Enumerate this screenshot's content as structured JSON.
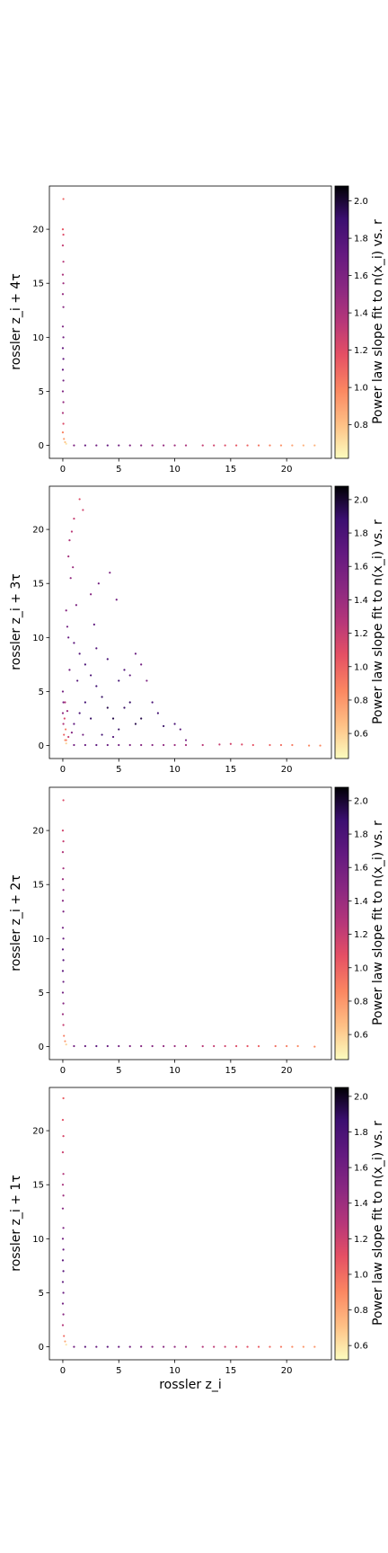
{
  "chart_data": [
    {
      "type": "scatter",
      "ylabel": "rossler z_i + 4τ",
      "xlabel": "",
      "xlim": [
        -1.2,
        24.0
      ],
      "ylim": [
        -1.2,
        24.0
      ],
      "xticks": [
        0,
        5,
        10,
        15,
        20
      ],
      "yticks": [
        0,
        5,
        10,
        15,
        20
      ],
      "colorbar": {
        "label": "Power law slope fit to n(x_i) vs. r",
        "range": [
          0.62,
          2.08
        ],
        "ticks": [
          0.8,
          1.0,
          1.2,
          1.4,
          1.6,
          1.8,
          2.0
        ]
      },
      "points": {
        "spine_y": [
          [
            0.05,
            22.8,
            1.1
          ],
          [
            0.0,
            20.0,
            1.15
          ],
          [
            0.05,
            19.5,
            1.2
          ],
          [
            0.0,
            18.5,
            1.3
          ],
          [
            0.05,
            17.0,
            1.35
          ],
          [
            0.0,
            15.8,
            1.4
          ],
          [
            0.05,
            15.0,
            1.45
          ],
          [
            0.0,
            14.0,
            1.5
          ],
          [
            0.05,
            12.8,
            1.55
          ],
          [
            0.0,
            11.0,
            1.6
          ],
          [
            0.05,
            10.0,
            1.65
          ],
          [
            0.0,
            9.0,
            1.7
          ],
          [
            0.05,
            8.0,
            1.72
          ],
          [
            0.0,
            7.0,
            1.7
          ],
          [
            0.05,
            6.0,
            1.65
          ],
          [
            0.0,
            5.0,
            1.6
          ],
          [
            0.05,
            4.0,
            1.5
          ],
          [
            0.0,
            3.0,
            1.4
          ],
          [
            0.05,
            2.0,
            1.2
          ],
          [
            0.0,
            1.2,
            1.0
          ],
          [
            0.1,
            0.6,
            0.9
          ],
          [
            0.2,
            0.3,
            0.8
          ],
          [
            0.3,
            0.15,
            0.7
          ]
        ],
        "spine_x": [
          [
            1.0,
            0.0,
            1.6
          ],
          [
            2.0,
            0.0,
            1.7
          ],
          [
            3.0,
            0.0,
            1.65
          ],
          [
            4.0,
            0.0,
            1.7
          ],
          [
            5.0,
            0.0,
            1.65
          ],
          [
            6.0,
            0.0,
            1.6
          ],
          [
            7.0,
            0.0,
            1.55
          ],
          [
            8.0,
            0.0,
            1.5
          ],
          [
            9.0,
            0.0,
            1.5
          ],
          [
            10.0,
            0.0,
            1.45
          ],
          [
            11.0,
            0.0,
            1.4
          ],
          [
            12.5,
            0.0,
            1.3
          ],
          [
            13.5,
            0.0,
            1.25
          ],
          [
            14.5,
            0.0,
            1.2
          ],
          [
            15.5,
            0.0,
            1.15
          ],
          [
            16.5,
            0.0,
            1.1
          ],
          [
            17.5,
            0.0,
            1.05
          ],
          [
            18.5,
            0.0,
            1.0
          ],
          [
            19.5,
            0.0,
            0.95
          ],
          [
            20.5,
            0.0,
            0.9
          ],
          [
            21.5,
            0.0,
            0.85
          ],
          [
            22.5,
            0.0,
            0.85
          ]
        ],
        "scatter": []
      }
    },
    {
      "type": "scatter",
      "ylabel": "rossler z_i + 3τ",
      "xlabel": "",
      "xlim": [
        -1.2,
        24.0
      ],
      "ylim": [
        -1.2,
        24.0
      ],
      "xticks": [
        0,
        5,
        10,
        15,
        20
      ],
      "yticks": [
        0,
        5,
        10,
        15,
        20
      ],
      "colorbar": {
        "label": "Power law slope fit to n(x_i) vs. r",
        "range": [
          0.45,
          2.08
        ],
        "ticks": [
          0.6,
          0.8,
          1.0,
          1.2,
          1.4,
          1.6,
          1.8,
          2.0
        ]
      },
      "points": {
        "spine_y": [
          [
            0.0,
            5.0,
            1.6
          ],
          [
            0.05,
            4.0,
            1.55
          ],
          [
            0.0,
            3.0,
            1.45
          ],
          [
            0.05,
            2.0,
            1.3
          ],
          [
            0.1,
            1.0,
            1.0
          ],
          [
            0.2,
            0.5,
            0.8
          ],
          [
            0.3,
            0.2,
            0.6
          ]
        ],
        "spine_x": [
          [
            1.0,
            0.05,
            1.6
          ],
          [
            2.0,
            0.05,
            1.65
          ],
          [
            3.0,
            0.05,
            1.7
          ],
          [
            4.0,
            0.05,
            1.65
          ],
          [
            5.0,
            0.05,
            1.6
          ],
          [
            6.0,
            0.05,
            1.55
          ],
          [
            7.0,
            0.05,
            1.5
          ],
          [
            8.0,
            0.05,
            1.5
          ],
          [
            9.0,
            0.05,
            1.45
          ],
          [
            10.0,
            0.05,
            1.4
          ],
          [
            11.0,
            0.05,
            1.35
          ],
          [
            12.5,
            0.05,
            1.25
          ],
          [
            14.0,
            0.1,
            1.2
          ],
          [
            15.0,
            0.15,
            1.15
          ],
          [
            16.0,
            0.1,
            1.1
          ],
          [
            17.0,
            0.05,
            1.05
          ],
          [
            18.5,
            0.05,
            1.0
          ],
          [
            19.5,
            0.05,
            0.95
          ],
          [
            20.5,
            0.05,
            0.9
          ],
          [
            22.0,
            0.0,
            0.85
          ],
          [
            23.0,
            0.0,
            0.85
          ]
        ],
        "scatter": [
          [
            1.5,
            22.8,
            1.1
          ],
          [
            1.8,
            21.8,
            1.15
          ],
          [
            1.0,
            21.0,
            1.2
          ],
          [
            0.8,
            19.8,
            1.25
          ],
          [
            0.6,
            19.0,
            1.3
          ],
          [
            0.5,
            17.5,
            1.35
          ],
          [
            0.9,
            16.5,
            1.4
          ],
          [
            0.7,
            15.5,
            1.45
          ],
          [
            2.5,
            14.0,
            1.5
          ],
          [
            1.2,
            13.0,
            1.55
          ],
          [
            0.3,
            12.5,
            1.5
          ],
          [
            0.4,
            11.0,
            1.6
          ],
          [
            0.5,
            10.0,
            1.65
          ],
          [
            1.0,
            9.5,
            1.7
          ],
          [
            1.5,
            8.5,
            1.75
          ],
          [
            2.0,
            7.5,
            1.8
          ],
          [
            2.5,
            6.5,
            1.8
          ],
          [
            3.0,
            5.5,
            1.85
          ],
          [
            3.5,
            4.5,
            1.9
          ],
          [
            4.0,
            3.5,
            1.95
          ],
          [
            4.5,
            2.5,
            1.95
          ],
          [
            5.0,
            1.5,
            1.9
          ],
          [
            5.5,
            7.0,
            1.75
          ],
          [
            6.0,
            6.5,
            1.7
          ],
          [
            6.5,
            8.5,
            1.65
          ],
          [
            7.0,
            7.5,
            1.6
          ],
          [
            7.5,
            6.0,
            1.55
          ],
          [
            8.0,
            4.0,
            1.8
          ],
          [
            8.5,
            3.0,
            1.85
          ],
          [
            9.0,
            1.8,
            1.9
          ],
          [
            10.0,
            2.0,
            1.8
          ],
          [
            10.5,
            1.5,
            1.75
          ],
          [
            11.0,
            0.5,
            1.6
          ],
          [
            3.0,
            9.0,
            1.75
          ],
          [
            4.0,
            8.0,
            1.8
          ],
          [
            5.0,
            6.0,
            1.85
          ],
          [
            6.0,
            4.0,
            1.9
          ],
          [
            7.0,
            2.5,
            1.95
          ],
          [
            2.0,
            4.0,
            1.85
          ],
          [
            1.5,
            3.0,
            1.8
          ],
          [
            1.0,
            2.0,
            1.7
          ],
          [
            0.8,
            1.2,
            1.5
          ],
          [
            0.5,
            0.8,
            1.2
          ],
          [
            0.3,
            0.5,
            0.9
          ],
          [
            2.5,
            2.5,
            1.9
          ],
          [
            3.5,
            1.0,
            1.85
          ],
          [
            4.5,
            0.8,
            1.75
          ],
          [
            5.5,
            3.5,
            1.9
          ],
          [
            6.5,
            2.0,
            1.95
          ],
          [
            2.8,
            11.2,
            1.7
          ],
          [
            3.2,
            15.0,
            1.6
          ],
          [
            4.2,
            16.0,
            1.55
          ],
          [
            4.8,
            13.5,
            1.6
          ],
          [
            1.3,
            6.0,
            1.75
          ],
          [
            0.6,
            7.0,
            1.6
          ],
          [
            0.2,
            4.0,
            1.3
          ],
          [
            0.15,
            2.5,
            1.1
          ],
          [
            0.25,
            1.5,
            0.9
          ],
          [
            0.4,
            3.2,
            1.4
          ],
          [
            1.8,
            1.0,
            1.6
          ]
        ]
      }
    },
    {
      "type": "scatter",
      "ylabel": "rossler z_i + 2τ",
      "xlabel": "",
      "xlim": [
        -1.2,
        24.0
      ],
      "ylim": [
        -1.2,
        24.0
      ],
      "xticks": [
        0,
        5,
        10,
        15,
        20
      ],
      "yticks": [
        0,
        5,
        10,
        15,
        20
      ],
      "colorbar": {
        "label": "Power law slope fit to n(x_i) vs. r",
        "range": [
          0.45,
          2.08
        ],
        "ticks": [
          0.6,
          0.8,
          1.0,
          1.2,
          1.4,
          1.6,
          1.8,
          2.0
        ]
      },
      "points": {
        "spine_y": [
          [
            0.05,
            22.8,
            1.1
          ],
          [
            0.0,
            20.0,
            1.15
          ],
          [
            0.05,
            19.0,
            1.2
          ],
          [
            0.0,
            18.0,
            1.3
          ],
          [
            0.05,
            16.5,
            1.35
          ],
          [
            0.0,
            15.5,
            1.4
          ],
          [
            0.05,
            14.5,
            1.45
          ],
          [
            0.0,
            13.5,
            1.5
          ],
          [
            0.05,
            12.5,
            1.55
          ],
          [
            0.0,
            11.0,
            1.6
          ],
          [
            0.05,
            10.0,
            1.65
          ],
          [
            0.0,
            9.0,
            1.7
          ],
          [
            0.05,
            8.0,
            1.72
          ],
          [
            0.0,
            7.0,
            1.7
          ],
          [
            0.05,
            6.0,
            1.65
          ],
          [
            0.0,
            5.0,
            1.6
          ],
          [
            0.05,
            4.0,
            1.5
          ],
          [
            0.0,
            3.0,
            1.4
          ],
          [
            0.05,
            2.0,
            1.2
          ],
          [
            0.1,
            1.0,
            0.9
          ],
          [
            0.2,
            0.5,
            0.8
          ],
          [
            0.3,
            0.2,
            0.6
          ]
        ],
        "spine_x": [
          [
            1.0,
            0.05,
            1.6
          ],
          [
            2.0,
            0.05,
            1.65
          ],
          [
            3.0,
            0.05,
            1.7
          ],
          [
            4.0,
            0.05,
            1.65
          ],
          [
            5.0,
            0.05,
            1.6
          ],
          [
            6.0,
            0.05,
            1.55
          ],
          [
            7.0,
            0.05,
            1.5
          ],
          [
            8.0,
            0.05,
            1.5
          ],
          [
            9.0,
            0.05,
            1.45
          ],
          [
            10.0,
            0.05,
            1.4
          ],
          [
            11.0,
            0.05,
            1.35
          ],
          [
            12.5,
            0.05,
            1.25
          ],
          [
            13.5,
            0.05,
            1.2
          ],
          [
            14.5,
            0.05,
            1.15
          ],
          [
            15.5,
            0.05,
            1.1
          ],
          [
            16.5,
            0.05,
            1.05
          ],
          [
            17.5,
            0.05,
            1.0
          ],
          [
            19.0,
            0.05,
            0.95
          ],
          [
            20.0,
            0.05,
            0.9
          ],
          [
            21.0,
            0.05,
            0.85
          ],
          [
            22.5,
            0.0,
            0.85
          ]
        ],
        "scatter": []
      }
    },
    {
      "type": "scatter",
      "ylabel": "rossler z_i + 1τ",
      "xlabel": "rossler z_i",
      "xlim": [
        -1.2,
        24.0
      ],
      "ylim": [
        -1.2,
        24.0
      ],
      "xticks": [
        0,
        5,
        10,
        15,
        20
      ],
      "yticks": [
        0,
        5,
        10,
        15,
        20
      ],
      "colorbar": {
        "label": "Power law slope fit to n(x_i) vs. r",
        "range": [
          0.52,
          2.05
        ],
        "ticks": [
          0.6,
          0.8,
          1.0,
          1.2,
          1.4,
          1.6,
          1.8,
          2.0
        ]
      },
      "points": {
        "spine_y": [
          [
            0.05,
            23.0,
            1.05
          ],
          [
            0.0,
            21.0,
            1.1
          ],
          [
            0.05,
            19.5,
            1.15
          ],
          [
            0.0,
            18.0,
            1.2
          ],
          [
            0.05,
            16.0,
            1.3
          ],
          [
            0.0,
            15.0,
            1.35
          ],
          [
            0.05,
            14.0,
            1.4
          ],
          [
            0.0,
            12.8,
            1.5
          ],
          [
            0.05,
            11.0,
            1.55
          ],
          [
            0.0,
            10.0,
            1.6
          ],
          [
            0.05,
            9.0,
            1.65
          ],
          [
            0.0,
            8.0,
            1.7
          ],
          [
            0.05,
            7.0,
            1.72
          ],
          [
            0.0,
            6.0,
            1.7
          ],
          [
            0.05,
            5.0,
            1.65
          ],
          [
            0.0,
            4.0,
            1.6
          ],
          [
            0.05,
            3.0,
            1.5
          ],
          [
            0.0,
            2.0,
            1.3
          ],
          [
            0.1,
            1.0,
            1.0
          ],
          [
            0.2,
            0.5,
            0.8
          ],
          [
            0.3,
            0.2,
            0.6
          ]
        ],
        "spine_x": [
          [
            1.0,
            0.0,
            1.6
          ],
          [
            2.0,
            0.0,
            1.7
          ],
          [
            3.0,
            0.0,
            1.65
          ],
          [
            4.0,
            0.0,
            1.7
          ],
          [
            5.0,
            0.0,
            1.65
          ],
          [
            6.0,
            0.0,
            1.6
          ],
          [
            7.0,
            0.0,
            1.55
          ],
          [
            8.0,
            0.0,
            1.5
          ],
          [
            9.0,
            0.0,
            1.5
          ],
          [
            10.0,
            0.0,
            1.45
          ],
          [
            11.0,
            0.0,
            1.4
          ],
          [
            12.5,
            0.0,
            1.3
          ],
          [
            13.5,
            0.0,
            1.25
          ],
          [
            14.5,
            0.0,
            1.2
          ],
          [
            15.5,
            0.0,
            1.15
          ],
          [
            16.5,
            0.0,
            1.1
          ],
          [
            17.5,
            0.0,
            1.05
          ],
          [
            18.5,
            0.0,
            1.0
          ],
          [
            19.5,
            0.0,
            0.95
          ],
          [
            20.5,
            0.0,
            0.9
          ],
          [
            21.5,
            0.0,
            0.85
          ],
          [
            22.5,
            0.0,
            0.85
          ]
        ],
        "scatter": []
      }
    }
  ]
}
